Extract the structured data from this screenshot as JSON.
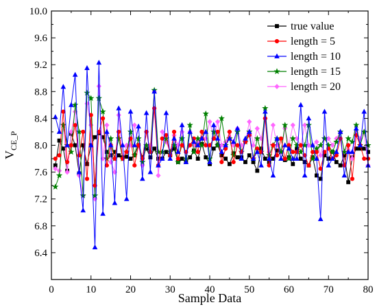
{
  "chart_data": {
    "type": "line",
    "xlabel": "Sample Data",
    "ylabel_main": "V",
    "ylabel_sub": "CE_P",
    "xlim": [
      0,
      80
    ],
    "ylim": [
      6.0,
      10.0
    ],
    "xticks": [
      0,
      10,
      20,
      30,
      40,
      50,
      60,
      70,
      80
    ],
    "yticks": [
      6.4,
      6.8,
      7.2,
      7.6,
      8.0,
      8.4,
      8.8,
      9.2,
      9.6,
      10.0
    ],
    "ytick_labels": [
      "6.4",
      "6.8",
      "7.2",
      "7.6",
      "8.0",
      "8.4",
      "8.8",
      "9.2",
      "9.6",
      "10.0"
    ],
    "legend_position": "top-right",
    "grid": false,
    "x": [
      1,
      2,
      3,
      4,
      5,
      6,
      7,
      8,
      9,
      10,
      11,
      12,
      13,
      14,
      15,
      16,
      17,
      18,
      19,
      20,
      21,
      22,
      23,
      24,
      25,
      26,
      27,
      28,
      29,
      30,
      31,
      32,
      33,
      34,
      35,
      36,
      37,
      38,
      39,
      40,
      41,
      42,
      43,
      44,
      45,
      46,
      47,
      48,
      49,
      50,
      51,
      52,
      53,
      54,
      55,
      56,
      57,
      58,
      59,
      60,
      61,
      62,
      63,
      64,
      65,
      66,
      67,
      68,
      69,
      70,
      71,
      72,
      73,
      74,
      75,
      76,
      77,
      78,
      79,
      80
    ],
    "series": [
      {
        "name": "true value",
        "color": "#000000",
        "marker": "square",
        "values": [
          7.7,
          8.07,
          7.95,
          7.62,
          8.17,
          8.0,
          7.58,
          8.0,
          7.72,
          8.0,
          8.12,
          8.18,
          8.12,
          7.9,
          7.85,
          7.9,
          7.85,
          7.82,
          7.83,
          7.8,
          7.85,
          8.0,
          7.82,
          7.95,
          7.82,
          7.95,
          7.8,
          7.8,
          7.9,
          7.85,
          7.95,
          7.75,
          7.8,
          7.75,
          7.82,
          7.92,
          7.8,
          8.02,
          7.82,
          7.72,
          7.95,
          8.0,
          7.85,
          7.8,
          7.72,
          7.88,
          7.82,
          7.82,
          7.75,
          7.85,
          7.75,
          7.62,
          7.95,
          7.8,
          7.75,
          7.8,
          7.92,
          7.9,
          7.78,
          7.82,
          7.72,
          7.95,
          7.8,
          7.75,
          7.7,
          7.82,
          7.55,
          7.5,
          7.85,
          7.8,
          7.9,
          7.75,
          7.7,
          7.85,
          7.45,
          7.82,
          7.95,
          7.95,
          7.95,
          7.9
        ]
      },
      {
        "name": "length = 5",
        "color": "#ff0000",
        "marker": "circle",
        "values": [
          7.8,
          7.85,
          8.5,
          7.75,
          8.0,
          8.3,
          7.85,
          8.2,
          7.5,
          8.45,
          7.4,
          8.2,
          8.4,
          7.7,
          8.0,
          7.8,
          8.2,
          7.8,
          7.9,
          8.1,
          7.7,
          8.0,
          7.8,
          8.2,
          7.9,
          8.55,
          7.7,
          8.1,
          8.15,
          7.85,
          8.2,
          7.8,
          8.0,
          7.9,
          8.0,
          8.1,
          7.9,
          8.2,
          8.0,
          8.0,
          8.1,
          8.2,
          7.75,
          7.95,
          8.2,
          7.75,
          8.0,
          7.9,
          8.05,
          8.15,
          7.8,
          7.95,
          7.9,
          8.4,
          7.7,
          8.0,
          7.85,
          8.1,
          7.8,
          8.0,
          7.9,
          7.9,
          8.0,
          7.85,
          7.7,
          7.9,
          7.9,
          7.65,
          7.9,
          7.95,
          7.8,
          7.85,
          8.1,
          7.7,
          8.0,
          7.5,
          8.15,
          8.0,
          7.8,
          7.8
        ]
      },
      {
        "name": "length = 10",
        "color": "#0000ff",
        "marker": "triangle",
        "values": [
          8.42,
          8.2,
          8.87,
          8.0,
          8.6,
          9.05,
          7.6,
          7.03,
          9.15,
          8.0,
          6.48,
          9.23,
          6.98,
          8.2,
          8.0,
          7.14,
          8.55,
          8.0,
          7.2,
          8.5,
          8.0,
          8.28,
          7.5,
          8.48,
          7.6,
          8.8,
          7.7,
          7.8,
          8.48,
          7.8,
          8.1,
          7.9,
          8.3,
          7.75,
          8.2,
          8.05,
          8.0,
          8.1,
          8.2,
          7.75,
          8.3,
          8.1,
          7.9,
          8.0,
          8.1,
          8.05,
          8.25,
          7.8,
          8.1,
          8.2,
          7.8,
          7.9,
          7.7,
          8.5,
          7.8,
          7.55,
          8.1,
          7.8,
          8.0,
          7.95,
          7.8,
          7.8,
          8.6,
          7.55,
          8.4,
          8.0,
          7.8,
          6.9,
          8.5,
          7.7,
          7.8,
          7.9,
          8.2,
          7.55,
          7.9,
          7.9,
          8.25,
          8.0,
          8.5,
          7.7
        ]
      },
      {
        "name": "length = 15",
        "color": "#008000",
        "marker": "star",
        "values": [
          7.38,
          7.55,
          8.3,
          8.0,
          7.9,
          8.6,
          8.2,
          7.25,
          8.78,
          8.7,
          7.25,
          8.7,
          8.5,
          7.8,
          8.1,
          7.8,
          8.1,
          7.8,
          7.9,
          8.2,
          7.85,
          8.1,
          7.75,
          8.0,
          7.9,
          8.82,
          7.9,
          7.9,
          8.1,
          7.9,
          8.0,
          7.75,
          8.1,
          7.8,
          8.3,
          7.9,
          8.1,
          8.0,
          8.47,
          7.8,
          8.2,
          8.0,
          8.4,
          8.0,
          8.1,
          7.85,
          8.2,
          7.9,
          8.05,
          8.2,
          7.8,
          8.1,
          7.9,
          8.55,
          7.85,
          8.0,
          8.1,
          7.9,
          8.3,
          7.8,
          8.1,
          8.0,
          7.9,
          8.0,
          8.3,
          7.8,
          7.95,
          8.0,
          8.1,
          8.0,
          7.9,
          8.05,
          8.2,
          7.9,
          8.1,
          8.05,
          8.3,
          8.0,
          8.2,
          8.0
        ]
      },
      {
        "name": "length = 20",
        "color": "#ff66ff",
        "marker": "diamond",
        "values": [
          7.65,
          7.62,
          8.3,
          7.6,
          8.2,
          8.5,
          7.55,
          7.25,
          8.62,
          8.3,
          7.2,
          8.88,
          7.8,
          8.3,
          7.75,
          7.6,
          8.45,
          7.8,
          8.0,
          8.0,
          8.3,
          8.0,
          7.7,
          8.0,
          8.0,
          8.8,
          7.55,
          8.2,
          8.05,
          7.9,
          8.15,
          8.0,
          8.2,
          7.8,
          8.2,
          8.0,
          8.05,
          8.1,
          8.1,
          8.35,
          8.1,
          8.35,
          8.0,
          8.05,
          8.2,
          8.0,
          8.25,
          8.0,
          8.05,
          8.35,
          8.0,
          8.25,
          8.1,
          8.4,
          7.9,
          8.3,
          8.0,
          7.9,
          8.25,
          8.0,
          8.3,
          8.1,
          8.0,
          8.3,
          8.0,
          8.0,
          8.05,
          7.85,
          8.1,
          8.1,
          8.0,
          8.1,
          8.2,
          7.9,
          8.0,
          7.8,
          8.2,
          8.1,
          8.2,
          7.7
        ]
      }
    ]
  }
}
